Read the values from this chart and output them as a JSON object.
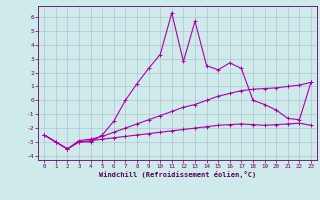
{
  "xlabel": "Windchill (Refroidissement éolien,°C)",
  "xlim": [
    -0.5,
    23.5
  ],
  "ylim": [
    -4.3,
    6.8
  ],
  "yticks": [
    -4,
    -3,
    -2,
    -1,
    0,
    1,
    2,
    3,
    4,
    5,
    6
  ],
  "xticks": [
    0,
    1,
    2,
    3,
    4,
    5,
    6,
    7,
    8,
    9,
    10,
    11,
    12,
    13,
    14,
    15,
    16,
    17,
    18,
    19,
    20,
    21,
    22,
    23
  ],
  "background_color": "#ceeaea",
  "grid_color": "#aabccc",
  "line_color": "#aa00aa",
  "line1_x": [
    0,
    1,
    2,
    3,
    4,
    5,
    6,
    7,
    8,
    9,
    10,
    11,
    12,
    13,
    14,
    15,
    16,
    17,
    18,
    19,
    20,
    21,
    22,
    23
  ],
  "line1_y": [
    -2.5,
    -3.0,
    -3.5,
    -3.0,
    -2.9,
    -2.8,
    -2.7,
    -2.6,
    -2.5,
    -2.4,
    -2.3,
    -2.2,
    -2.1,
    -2.0,
    -1.9,
    -1.8,
    -1.75,
    -1.7,
    -1.75,
    -1.8,
    -1.75,
    -1.7,
    -1.65,
    -1.8
  ],
  "line2_x": [
    0,
    1,
    2,
    3,
    4,
    5,
    6,
    7,
    8,
    9,
    10,
    11,
    12,
    13,
    14,
    15,
    16,
    17,
    18,
    19,
    20,
    21,
    22,
    23
  ],
  "line2_y": [
    -2.5,
    -3.0,
    -3.5,
    -2.9,
    -2.8,
    -2.6,
    -2.3,
    -2.0,
    -1.7,
    -1.4,
    -1.1,
    -0.8,
    -0.5,
    -0.3,
    0.0,
    0.3,
    0.5,
    0.7,
    0.8,
    0.85,
    0.9,
    1.0,
    1.1,
    1.3
  ],
  "line3_x": [
    0,
    1,
    2,
    3,
    4,
    5,
    6,
    7,
    8,
    9,
    10,
    11,
    12,
    13,
    14,
    15,
    16,
    17,
    18,
    19,
    20,
    21,
    22,
    23
  ],
  "line3_y": [
    -2.5,
    -3.0,
    -3.5,
    -3.0,
    -3.0,
    -2.5,
    -1.5,
    0.0,
    1.2,
    2.3,
    3.3,
    6.3,
    2.8,
    5.7,
    2.5,
    2.2,
    2.7,
    2.3,
    0.0,
    -0.3,
    -0.7,
    -1.3,
    -1.4,
    1.3
  ]
}
